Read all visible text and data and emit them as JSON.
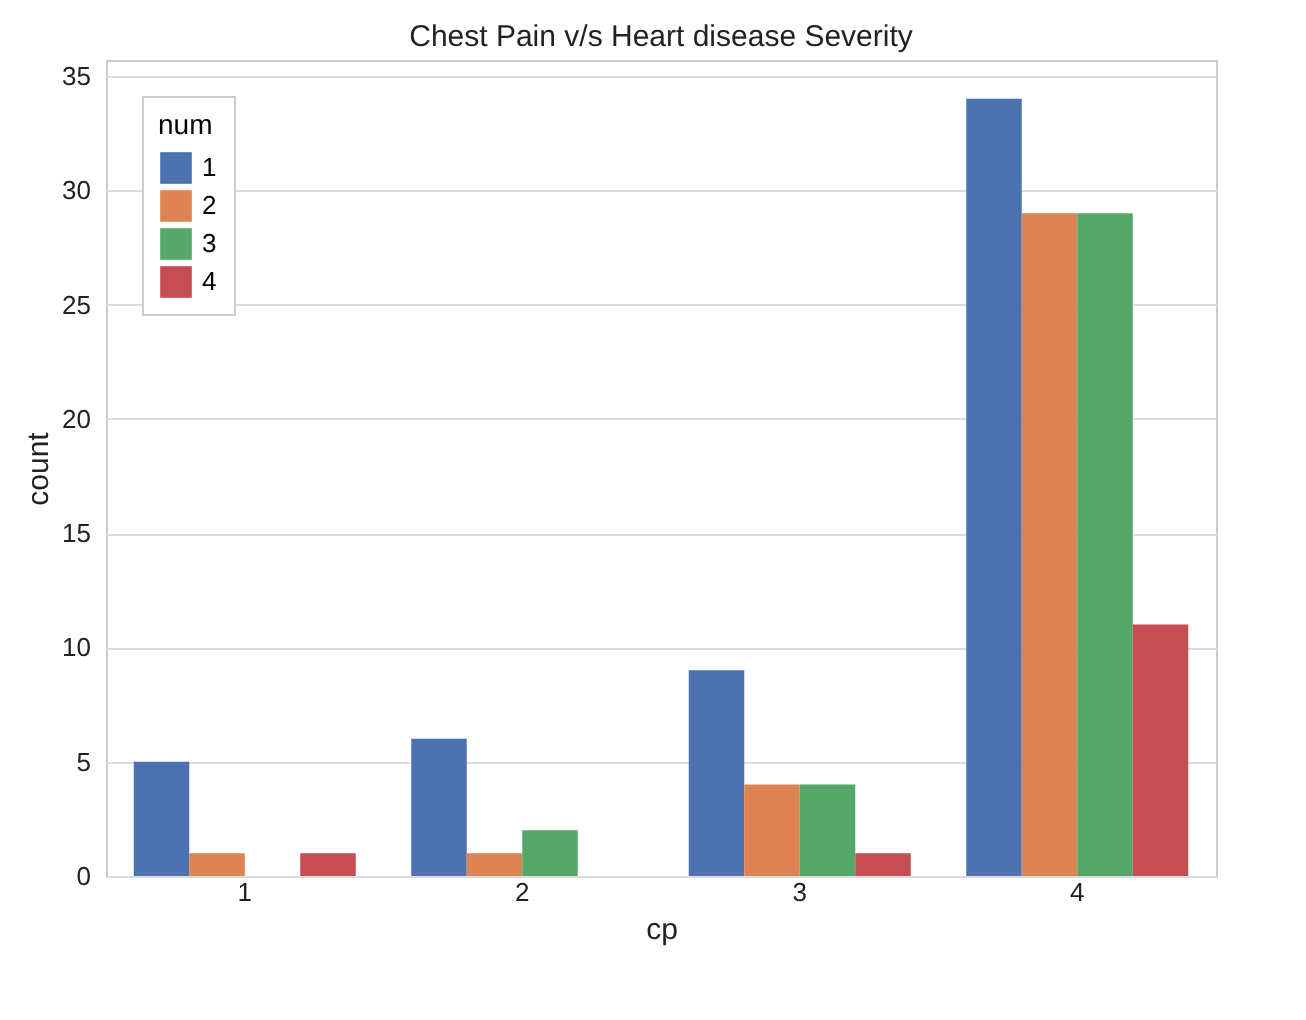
{
  "chart_data": {
    "type": "bar",
    "title": "Chest Pain v/s Heart disease Severity",
    "xlabel": "cp",
    "ylabel": "count",
    "legend_title": "num",
    "categories": [
      "1",
      "2",
      "3",
      "4"
    ],
    "series": [
      {
        "name": "1",
        "color": "#4c72b0",
        "values": [
          5,
          6,
          9,
          34
        ]
      },
      {
        "name": "2",
        "color": "#dd8452",
        "values": [
          1,
          1,
          4,
          29
        ]
      },
      {
        "name": "3",
        "color": "#55a868",
        "values": [
          0,
          2,
          4,
          29
        ]
      },
      {
        "name": "4",
        "color": "#c44e52",
        "values": [
          1,
          0,
          1,
          11
        ]
      }
    ],
    "ylim": [
      0,
      35.7
    ],
    "yticks": [
      0,
      5,
      10,
      15,
      20,
      25,
      30,
      35
    ],
    "grid": "y",
    "legend": "top left"
  }
}
